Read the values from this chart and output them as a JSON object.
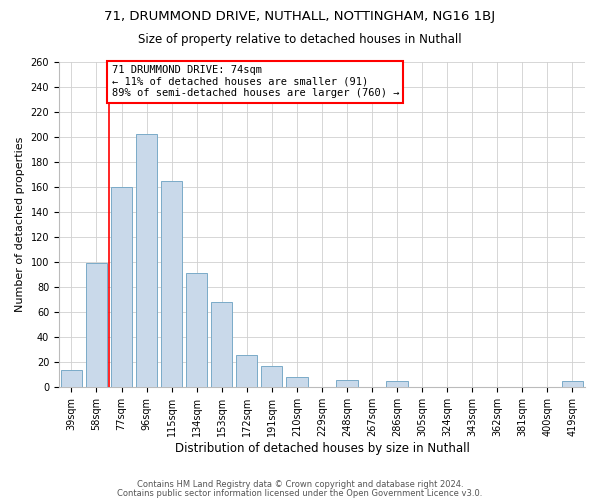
{
  "title": "71, DRUMMOND DRIVE, NUTHALL, NOTTINGHAM, NG16 1BJ",
  "subtitle": "Size of property relative to detached houses in Nuthall",
  "xlabel": "Distribution of detached houses by size in Nuthall",
  "ylabel": "Number of detached properties",
  "categories": [
    "39sqm",
    "58sqm",
    "77sqm",
    "96sqm",
    "115sqm",
    "134sqm",
    "153sqm",
    "172sqm",
    "191sqm",
    "210sqm",
    "229sqm",
    "248sqm",
    "267sqm",
    "286sqm",
    "305sqm",
    "324sqm",
    "343sqm",
    "362sqm",
    "381sqm",
    "400sqm",
    "419sqm"
  ],
  "values": [
    14,
    99,
    160,
    202,
    165,
    91,
    68,
    26,
    17,
    8,
    0,
    6,
    0,
    5,
    0,
    0,
    0,
    0,
    0,
    0,
    5
  ],
  "bar_color": "#c9d9ea",
  "bar_edge_color": "#7aaac8",
  "red_line_index": 1.5,
  "annotation_title": "71 DRUMMOND DRIVE: 74sqm",
  "annotation_line2": "← 11% of detached houses are smaller (91)",
  "annotation_line3": "89% of semi-detached houses are larger (760) →",
  "ylim": [
    0,
    260
  ],
  "yticks": [
    0,
    20,
    40,
    60,
    80,
    100,
    120,
    140,
    160,
    180,
    200,
    220,
    240,
    260
  ],
  "footer1": "Contains HM Land Registry data © Crown copyright and database right 2024.",
  "footer2": "Contains public sector information licensed under the Open Government Licence v3.0.",
  "background_color": "#ffffff",
  "grid_color": "#d0d0d0",
  "title_fontsize": 9.5,
  "subtitle_fontsize": 8.5,
  "ylabel_fontsize": 8,
  "xlabel_fontsize": 8.5,
  "tick_fontsize": 7,
  "annotation_fontsize": 7.5,
  "footer_fontsize": 6
}
